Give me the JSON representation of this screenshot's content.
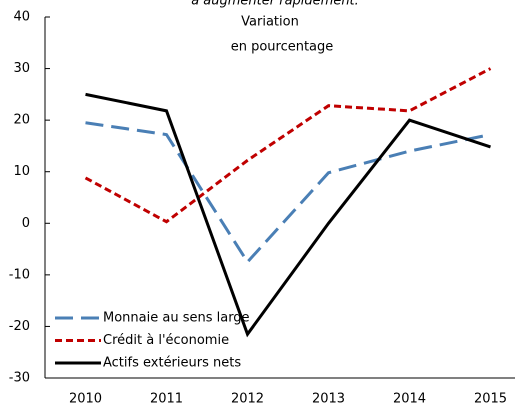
{
  "chart_data": {
    "type": "line",
    "title": "à augmenter rapidement.",
    "annotations": [
      "Variation",
      "en pourcentage"
    ],
    "categories": [
      "2010",
      "2011",
      "2012",
      "2013",
      "2014",
      "2015"
    ],
    "series": [
      {
        "name": "Monnaie au sens large",
        "color": "#4a7fb5",
        "dash": "18,8",
        "values": [
          19.5,
          17.2,
          -7.5,
          9.8,
          14,
          17.2
        ]
      },
      {
        "name": "Crédit à l'économie",
        "color": "#c00000",
        "dash": "7,4",
        "values": [
          8.8,
          0.3,
          12.2,
          22.8,
          21.8,
          30
        ]
      },
      {
        "name": "Actifs extérieurs nets",
        "color": "#000000",
        "dash": "none",
        "values": [
          25,
          21.8,
          -21.5,
          0,
          20,
          14.8
        ]
      }
    ],
    "ylim": [
      -30,
      40
    ],
    "yticks": [
      -30,
      -20,
      -10,
      0,
      10,
      20,
      30,
      40
    ],
    "legend": "lower left"
  }
}
